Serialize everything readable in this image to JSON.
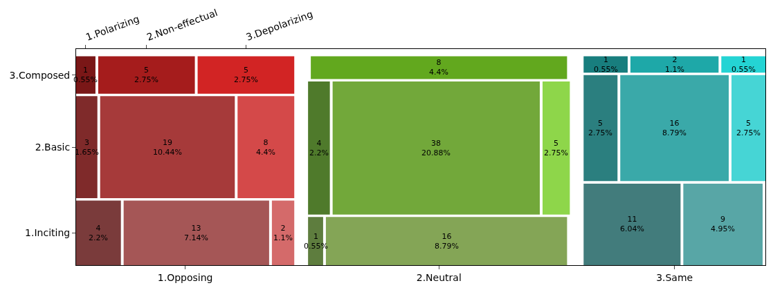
{
  "chart_data": {
    "type": "other",
    "categories": [
      "1.Opposing",
      "2.Neutral",
      "3.Same"
    ],
    "y_categories": [
      "3.Composed",
      "2.Basic",
      "1.Inciting"
    ],
    "series": [
      {
        "name": "1.Polarizing",
        "values": [
          1,
          null,
          1
        ],
        "value_labels": [
          "1\n0.55%",
          null,
          "1\n0.55%"
        ],
        "colors": [
          "#7a1717",
          null,
          "#187e7e"
        ]
      },
      {
        "name": "2.Non-effectual",
        "values": [
          5,
          8,
          2
        ],
        "value_labels": [
          "5\n2.75%",
          "8\n4.4%",
          "2\n1.1%"
        ],
        "colors": [
          "#a51c1c",
          "#62a81e",
          "#1ea8a8"
        ]
      },
      {
        "name": "3.Depolarizing",
        "values": [
          5,
          null,
          1
        ],
        "value_labels": [
          "5\n2.75%",
          null,
          "1\n0.55%"
        ],
        "colors": [
          "#d22424",
          null,
          "#24d4d4"
        ]
      },
      {
        "values": [
          3,
          4,
          5
        ],
        "value_labels": [
          "3\n1.65%",
          "4\n2.2%",
          "5\n2.75%"
        ],
        "colors": [
          "#7f2a2a",
          "#4f7a2b",
          "#2b7f7f"
        ]
      },
      {
        "values": [
          19,
          38,
          16
        ],
        "value_labels": [
          "19\n10.44%",
          "38\n20.88%",
          "16\n8.79%"
        ],
        "colors": [
          "#a63a3a",
          "#72a83a",
          "#3aa9a9"
        ]
      },
      {
        "values": [
          8,
          5,
          5
        ],
        "value_labels": [
          "8\n4.4%",
          "5\n2.75%",
          "5\n2.75%"
        ],
        "colors": [
          "#d44949",
          "#8ed64a",
          "#46d5d5"
        ]
      },
      {
        "values": [
          4,
          1,
          11
        ],
        "value_labels": [
          "4\n2.2%",
          "1\n0.55%",
          "11\n6.04%"
        ],
        "colors": [
          "#7a3b3b",
          "#5e7d3e",
          "#427c7c"
        ]
      },
      {
        "values": [
          13,
          16,
          9
        ],
        "value_labels": [
          "13\n7.14%",
          "16\n8.79%",
          "9\n4.95%"
        ],
        "colors": [
          "#a55656",
          "#84a556",
          "#58a6a6"
        ]
      },
      {
        "values": [
          2,
          null,
          null
        ],
        "value_labels": [
          "2\n1.1%",
          null,
          null
        ],
        "colors": [
          "#d46a6a",
          null,
          null
        ]
      }
    ]
  }
}
